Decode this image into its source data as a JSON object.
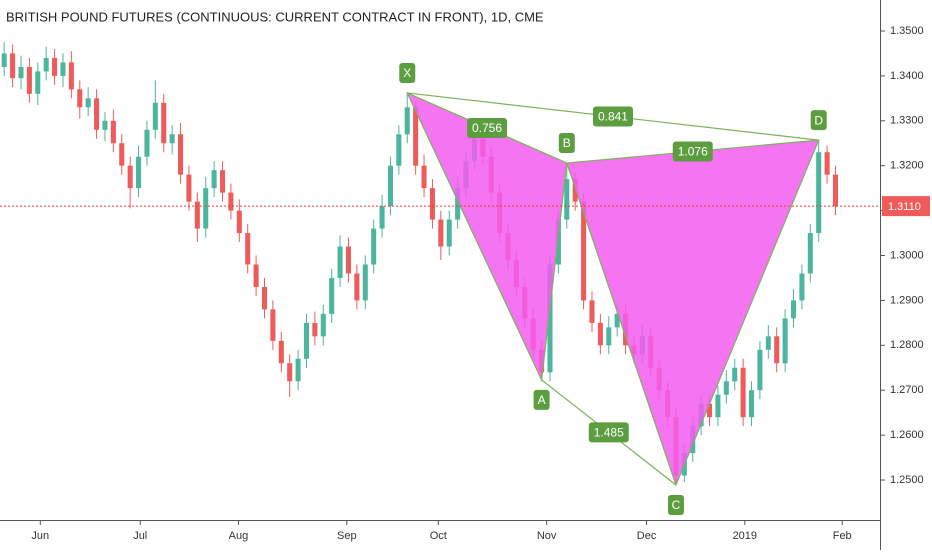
{
  "chart_data": {
    "type": "candlestick",
    "title": "BRITISH POUND FUTURES (CONTINUOUS: CURRENT CONTRACT IN FRONT), 1D, CME",
    "up_color": "#4bb59e",
    "down_color": "#ef5a5a",
    "xlim": [
      -0.5,
      104.3
    ],
    "xticks": [
      {
        "value": 4.3,
        "label": "Jun"
      },
      {
        "value": 16.2,
        "label": "Jul"
      },
      {
        "value": 27.9,
        "label": "Aug"
      },
      {
        "value": 40.8,
        "label": "Sep"
      },
      {
        "value": 51.7,
        "label": "Oct"
      },
      {
        "value": 64.6,
        "label": "Nov"
      },
      {
        "value": 76.5,
        "label": "Dec"
      },
      {
        "value": 88.2,
        "label": "2019"
      },
      {
        "value": 99.8,
        "label": "Feb"
      }
    ],
    "ylim": [
      1.2411,
      1.3569
    ],
    "yticks": [
      {
        "value": 1.35,
        "label": "1.3500"
      },
      {
        "value": 1.34,
        "label": "1.3400"
      },
      {
        "value": 1.33,
        "label": "1.3300"
      },
      {
        "value": 1.32,
        "label": "1.3200"
      },
      {
        "value": 1.31,
        "label": "1.3100"
      },
      {
        "value": 1.3,
        "label": "1.3000"
      },
      {
        "value": 1.29,
        "label": "1.2900"
      },
      {
        "value": 1.28,
        "label": "1.2800"
      },
      {
        "value": 1.27,
        "label": "1.2700"
      },
      {
        "value": 1.26,
        "label": "1.2600"
      },
      {
        "value": 1.25,
        "label": "1.2500"
      }
    ],
    "open": [
      1.342,
      1.345,
      1.3395,
      1.342,
      1.336,
      1.341,
      1.344,
      1.34,
      1.343,
      1.337,
      1.333,
      1.335,
      1.328,
      1.33,
      1.325,
      1.32,
      1.315,
      1.322,
      1.328,
      1.334,
      1.325,
      1.327,
      1.318,
      1.312,
      1.306,
      1.315,
      1.319,
      1.314,
      1.31,
      1.305,
      1.298,
      1.293,
      1.288,
      1.281,
      1.276,
      1.272,
      1.277,
      1.285,
      1.282,
      1.287,
      1.295,
      1.302,
      1.296,
      1.29,
      1.298,
      1.306,
      1.311,
      1.32,
      1.327,
      1.333,
      1.32,
      1.315,
      1.308,
      1.302,
      1.308,
      1.315,
      1.321,
      1.326,
      1.322,
      1.314,
      1.305,
      1.299,
      1.293,
      1.286,
      1.279,
      1.274,
      1.298,
      1.308,
      1.317,
      1.312,
      1.29,
      1.285,
      1.28,
      1.284,
      1.287,
      1.28,
      1.278,
      1.282,
      1.275,
      1.27,
      1.264,
      1.251,
      1.256,
      1.262,
      1.267,
      1.264,
      1.269,
      1.272,
      1.275,
      1.264,
      1.27,
      1.279,
      1.282,
      1.276,
      1.286,
      1.29,
      1.296,
      1.305,
      1.323,
      1.318
    ],
    "high": [
      1.3475,
      1.347,
      1.3445,
      1.344,
      1.343,
      1.3465,
      1.346,
      1.345,
      1.3455,
      1.339,
      1.3375,
      1.337,
      1.332,
      1.3325,
      1.327,
      1.322,
      1.3245,
      1.33,
      1.339,
      1.336,
      1.329,
      1.3295,
      1.32,
      1.314,
      1.3175,
      1.321,
      1.321,
      1.316,
      1.3125,
      1.307,
      1.3,
      1.295,
      1.29,
      1.283,
      1.278,
      1.279,
      1.287,
      1.2875,
      1.289,
      1.297,
      1.3045,
      1.304,
      1.298,
      1.3,
      1.308,
      1.3135,
      1.322,
      1.329,
      1.3362,
      1.3345,
      1.3225,
      1.317,
      1.31,
      1.31,
      1.3175,
      1.323,
      1.3285,
      1.328,
      1.324,
      1.316,
      1.307,
      1.301,
      1.295,
      1.288,
      1.281,
      1.3,
      1.31,
      1.3206,
      1.3185,
      1.314,
      1.292,
      1.287,
      1.2865,
      1.289,
      1.289,
      1.282,
      1.2845,
      1.284,
      1.277,
      1.272,
      1.266,
      1.258,
      1.264,
      1.269,
      1.269,
      1.271,
      1.2745,
      1.277,
      1.277,
      1.272,
      1.281,
      1.2845,
      1.284,
      1.288,
      1.2925,
      1.298,
      1.307,
      1.3257,
      1.3245,
      1.32
    ],
    "low": [
      1.34,
      1.3375,
      1.337,
      1.334,
      1.3335,
      1.339,
      1.338,
      1.3375,
      1.335,
      1.3305,
      1.331,
      1.326,
      1.3255,
      1.323,
      1.318,
      1.3105,
      1.313,
      1.32,
      1.326,
      1.323,
      1.3225,
      1.316,
      1.31,
      1.303,
      1.304,
      1.313,
      1.312,
      1.308,
      1.303,
      1.296,
      1.291,
      1.286,
      1.279,
      1.274,
      1.2685,
      1.27,
      1.275,
      1.28,
      1.28,
      1.285,
      1.293,
      1.294,
      1.288,
      1.288,
      1.296,
      1.304,
      1.309,
      1.318,
      1.325,
      1.318,
      1.313,
      1.306,
      1.299,
      1.3,
      1.306,
      1.313,
      1.319,
      1.32,
      1.312,
      1.303,
      1.297,
      1.291,
      1.284,
      1.277,
      1.2723,
      1.272,
      1.296,
      1.306,
      1.31,
      1.288,
      1.283,
      1.278,
      1.278,
      1.282,
      1.278,
      1.276,
      1.276,
      1.273,
      1.268,
      1.262,
      1.2489,
      1.2495,
      1.254,
      1.26,
      1.262,
      1.262,
      1.267,
      1.27,
      1.262,
      1.262,
      1.268,
      1.277,
      1.274,
      1.274,
      1.284,
      1.288,
      1.294,
      1.303,
      1.316,
      1.309
    ],
    "close": [
      1.345,
      1.3395,
      1.342,
      1.336,
      1.341,
      1.344,
      1.34,
      1.343,
      1.337,
      1.333,
      1.335,
      1.328,
      1.33,
      1.325,
      1.32,
      1.315,
      1.322,
      1.328,
      1.334,
      1.325,
      1.327,
      1.318,
      1.312,
      1.306,
      1.315,
      1.319,
      1.314,
      1.31,
      1.305,
      1.298,
      1.293,
      1.288,
      1.281,
      1.276,
      1.272,
      1.277,
      1.285,
      1.282,
      1.287,
      1.295,
      1.302,
      1.296,
      1.29,
      1.298,
      1.306,
      1.311,
      1.32,
      1.327,
      1.333,
      1.32,
      1.315,
      1.308,
      1.302,
      1.308,
      1.315,
      1.321,
      1.326,
      1.322,
      1.314,
      1.305,
      1.299,
      1.293,
      1.286,
      1.279,
      1.274,
      1.298,
      1.308,
      1.317,
      1.312,
      1.29,
      1.285,
      1.28,
      1.284,
      1.287,
      1.28,
      1.278,
      1.282,
      1.275,
      1.27,
      1.264,
      1.251,
      1.256,
      1.262,
      1.267,
      1.264,
      1.269,
      1.272,
      1.275,
      1.264,
      1.27,
      1.279,
      1.282,
      1.276,
      1.286,
      1.29,
      1.296,
      1.305,
      1.323,
      1.318,
      1.311
    ],
    "last_price": {
      "value": 1.311,
      "label": "1.3110"
    },
    "pattern": {
      "color": "#f25cf0",
      "line_color": "#7bb35a",
      "points": [
        {
          "label": "X",
          "x": 48,
          "y": 1.3362
        },
        {
          "label": "A",
          "x": 64,
          "y": 1.2723
        },
        {
          "label": "B",
          "x": 67,
          "y": 1.3206
        },
        {
          "label": "C",
          "x": 80,
          "y": 1.2489
        },
        {
          "label": "D",
          "x": 97,
          "y": 1.3257
        }
      ],
      "ratios": [
        "0.756",
        "0.841",
        "1.076",
        "1.485"
      ]
    }
  }
}
